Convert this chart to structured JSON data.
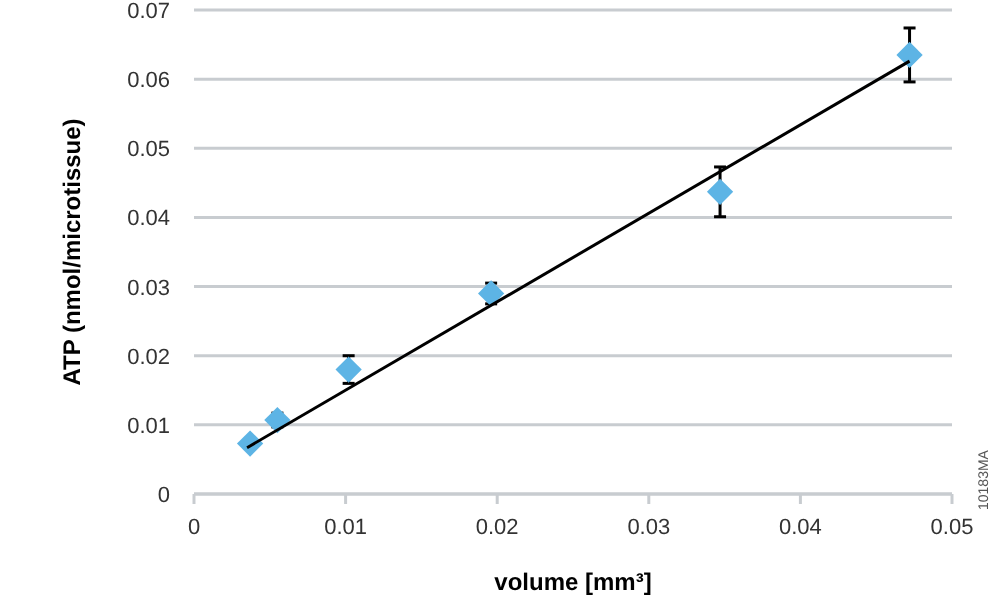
{
  "chart_data": {
    "type": "scatter",
    "xlabel": "volume [mm³]",
    "ylabel": "ATP (nmol/microtissue)",
    "annotations": [
      "10183MA"
    ],
    "series": [
      {
        "color": "#5db4e5",
        "marker": "diamond",
        "x": [
          0.0037,
          0.0055,
          0.0102,
          0.0196,
          0.0347,
          0.0472
        ],
        "values": [
          0.0073,
          0.0107,
          0.018,
          0.029,
          0.0437,
          0.0635
        ],
        "errors": [
          null,
          0.001,
          0.002,
          0.0015,
          0.0036,
          0.0039
        ]
      },
      {
        "type": "line",
        "color": "#000000",
        "x": [
          0.0035,
          0.0472
        ],
        "values": [
          0.0067,
          0.0626
        ]
      }
    ],
    "xlim": [
      0,
      0.05
    ],
    "xticks": [
      0,
      0.01,
      0.02,
      0.03,
      0.04,
      0.05
    ],
    "ylim": [
      0,
      0.07
    ],
    "yticks": [
      0,
      0.01,
      0.02,
      0.03,
      0.04,
      0.05,
      0.06,
      0.07
    ],
    "grid": "y"
  }
}
